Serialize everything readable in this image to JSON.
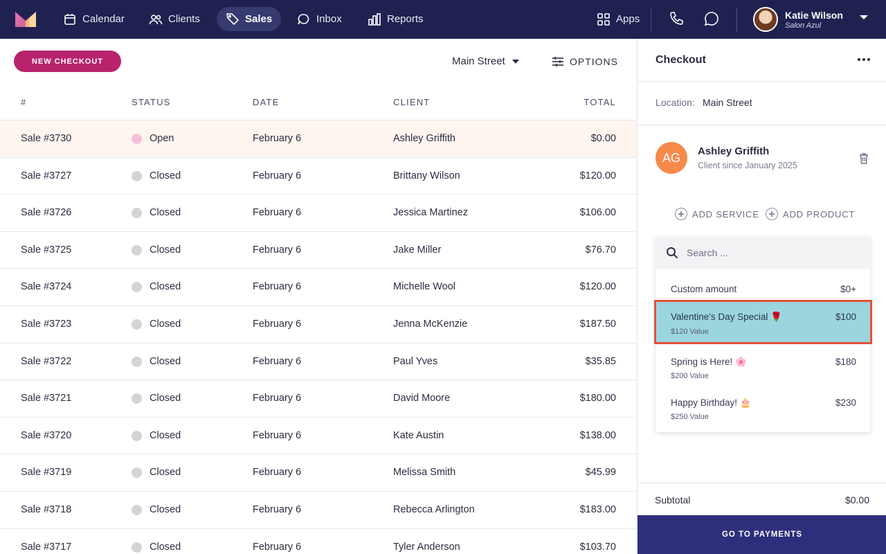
{
  "nav": {
    "items": [
      {
        "label": "Calendar",
        "icon": "calendar-icon"
      },
      {
        "label": "Clients",
        "icon": "clients-icon"
      },
      {
        "label": "Sales",
        "icon": "tag-icon",
        "active": true
      },
      {
        "label": "Inbox",
        "icon": "inbox-icon"
      },
      {
        "label": "Reports",
        "icon": "reports-icon"
      }
    ],
    "apps_label": "Apps",
    "user": {
      "name": "Katie Wilson",
      "salon": "Salon Azul"
    }
  },
  "toolbar": {
    "new_checkout_label": "NEW CHECKOUT",
    "location_value": "Main Street",
    "options_label": "OPTIONS"
  },
  "table": {
    "headers": {
      "number": "#",
      "status": "STATUS",
      "date": "DATE",
      "client": "CLIENT",
      "total": "TOTAL"
    },
    "rows": [
      {
        "sale": "Sale #3730",
        "status": "Open",
        "date": "February 6",
        "client": "Ashley Griffith",
        "total": "$0.00"
      },
      {
        "sale": "Sale #3727",
        "status": "Closed",
        "date": "February 6",
        "client": "Brittany Wilson",
        "total": "$120.00"
      },
      {
        "sale": "Sale #3726",
        "status": "Closed",
        "date": "February 6",
        "client": "Jessica Martinez",
        "total": "$106.00"
      },
      {
        "sale": "Sale #3725",
        "status": "Closed",
        "date": "February 6",
        "client": "Jake Miller",
        "total": "$76.70"
      },
      {
        "sale": "Sale #3724",
        "status": "Closed",
        "date": "February 6",
        "client": "Michelle Wool",
        "total": "$120.00"
      },
      {
        "sale": "Sale #3723",
        "status": "Closed",
        "date": "February 6",
        "client": "Jenna McKenzie",
        "total": "$187.50"
      },
      {
        "sale": "Sale #3722",
        "status": "Closed",
        "date": "February 6",
        "client": "Paul Yves",
        "total": "$35.85"
      },
      {
        "sale": "Sale #3721",
        "status": "Closed",
        "date": "February 6",
        "client": "David Moore",
        "total": "$180.00"
      },
      {
        "sale": "Sale #3720",
        "status": "Closed",
        "date": "February 6",
        "client": "Kate Austin",
        "total": "$138.00"
      },
      {
        "sale": "Sale #3719",
        "status": "Closed",
        "date": "February 6",
        "client": "Melissa Smith",
        "total": "$45.99"
      },
      {
        "sale": "Sale #3718",
        "status": "Closed",
        "date": "February 6",
        "client": "Rebecca Arlington",
        "total": "$183.00"
      },
      {
        "sale": "Sale #3717",
        "status": "Closed",
        "date": "February 6",
        "client": "Tyler Anderson",
        "total": "$103.70"
      }
    ]
  },
  "checkout": {
    "title": "Checkout",
    "location_label": "Location:",
    "location_value": "Main Street",
    "client": {
      "initials": "AG",
      "name": "Ashley Griffith",
      "since": "Client since January 2025"
    },
    "add_service_label": "ADD SERVICE",
    "add_product_label": "ADD PRODUCT",
    "search_placeholder": "Search ...",
    "options": [
      {
        "name": "Custom amount",
        "price": "$0+",
        "sub": ""
      },
      {
        "name": "Valentine's Day Special 🌹",
        "price": "$100",
        "sub": "$120 Value",
        "selected": true
      },
      {
        "name": "Spring is Here! 🌸",
        "price": "$180",
        "sub": "$200 Value"
      },
      {
        "name": "Happy Birthday! 🎂",
        "price": "$230",
        "sub": "$250 Value"
      }
    ],
    "subtotal_label": "Subtotal",
    "subtotal_value": "$0.00",
    "pay_label": "GO TO PAYMENTS"
  },
  "colors": {
    "nav_bg": "#1f2150",
    "accent": "#b8236d",
    "pay_button": "#2e2f7c",
    "selected_option": "#9bd6de",
    "selection_outline": "#e4503a",
    "client_avatar": "#f58a4b",
    "open_status": "#f6c1d8",
    "closed_status": "#d4d4d8"
  }
}
